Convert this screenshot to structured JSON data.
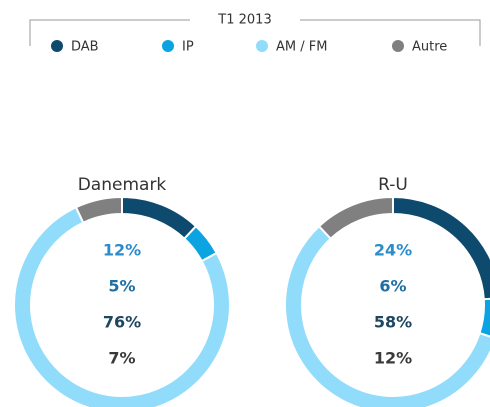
{
  "legend": {
    "title": "T1 2013",
    "categories": [
      "DAB",
      "IP",
      "AM / FM",
      "Autre"
    ],
    "colors": [
      "#0d4a6e",
      "#0ba3e2",
      "#92dcfb",
      "#808080"
    ]
  },
  "chart_data": [
    {
      "type": "pie",
      "donut": true,
      "title": "Danemark",
      "values": [
        12,
        5,
        76,
        7
      ],
      "value_labels": [
        "12%",
        "5%",
        "76%",
        "7%"
      ]
    },
    {
      "type": "pie",
      "donut": true,
      "title": "R-U",
      "values": [
        24,
        6,
        58,
        12
      ],
      "value_labels": [
        "24%",
        "6%",
        "58%",
        "12%"
      ]
    }
  ]
}
